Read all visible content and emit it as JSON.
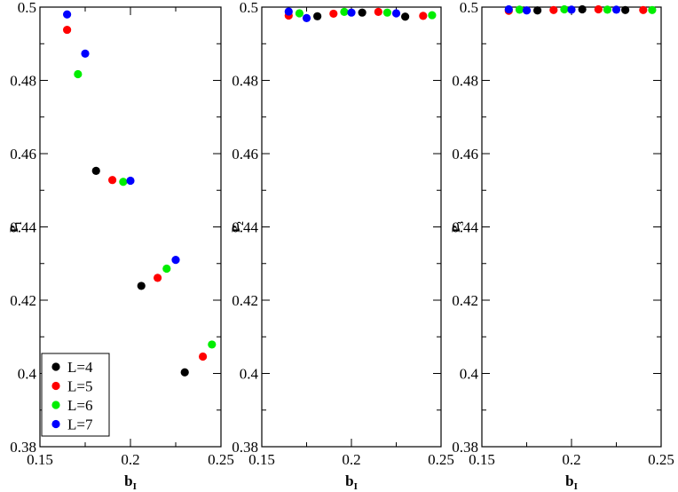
{
  "chart_data": [
    {
      "type": "scatter",
      "xlabel": "b",
      "xlabel_sub": "I",
      "ylabel": "P",
      "ylabel_sub": "1",
      "xlim": [
        0.15,
        0.25
      ],
      "ylim": [
        0.38,
        0.5
      ],
      "xticks": [
        "0.15",
        "0.2",
        "0.25"
      ],
      "yticks": [
        "0.38",
        "0.4",
        "0.42",
        "0.44",
        "0.46",
        "0.48",
        "0.5"
      ],
      "grid": false,
      "legend": "bottom-left",
      "series": [
        {
          "name": "L=4",
          "color": "#000000",
          "points": [
            [
              0.181,
              0.4553
            ],
            [
              0.206,
              0.4239
            ],
            [
              0.23,
              0.4003
            ]
          ]
        },
        {
          "name": "L=5",
          "color": "#ff0000",
          "points": [
            [
              0.165,
              0.4938
            ],
            [
              0.19,
              0.4528
            ],
            [
              0.215,
              0.4261
            ],
            [
              0.24,
              0.4046
            ]
          ]
        },
        {
          "name": "L=6",
          "color": "#00ee00",
          "points": [
            [
              0.171,
              0.4817
            ],
            [
              0.196,
              0.4523
            ],
            [
              0.22,
              0.4286
            ],
            [
              0.245,
              0.4079
            ]
          ]
        },
        {
          "name": "L=7",
          "color": "#0000ff",
          "points": [
            [
              0.165,
              0.498
            ],
            [
              0.175,
              0.4873
            ],
            [
              0.2,
              0.4526
            ],
            [
              0.225,
              0.431
            ]
          ]
        }
      ]
    },
    {
      "type": "scatter",
      "xlabel": "b",
      "xlabel_sub": "I",
      "ylabel": "P",
      "ylabel_sub": "2",
      "xlim": [
        0.15,
        0.25
      ],
      "ylim": [
        0.38,
        0.5
      ],
      "xticks": [
        "0.15",
        "0.2",
        "0.25"
      ],
      "yticks": [
        "0.38",
        "0.4",
        "0.42",
        "0.44",
        "0.46",
        "0.48",
        "0.5"
      ],
      "grid": false,
      "series": [
        {
          "name": "L=4",
          "color": "#000000",
          "points": [
            [
              0.181,
              0.4975
            ],
            [
              0.206,
              0.4985
            ],
            [
              0.23,
              0.4974
            ]
          ]
        },
        {
          "name": "L=5",
          "color": "#ff0000",
          "points": [
            [
              0.165,
              0.4977
            ],
            [
              0.19,
              0.4982
            ],
            [
              0.215,
              0.4987
            ],
            [
              0.24,
              0.4976
            ]
          ]
        },
        {
          "name": "L=6",
          "color": "#00ee00",
          "points": [
            [
              0.171,
              0.4983
            ],
            [
              0.196,
              0.4987
            ],
            [
              0.22,
              0.4985
            ],
            [
              0.245,
              0.4978
            ]
          ]
        },
        {
          "name": "L=7",
          "color": "#0000ff",
          "points": [
            [
              0.165,
              0.4988
            ],
            [
              0.175,
              0.497
            ],
            [
              0.2,
              0.4985
            ],
            [
              0.225,
              0.4983
            ]
          ]
        }
      ]
    },
    {
      "type": "scatter",
      "xlabel": "b",
      "xlabel_sub": "I",
      "ylabel": "P",
      "ylabel_sub": "3",
      "xlim": [
        0.15,
        0.25
      ],
      "ylim": [
        0.38,
        0.5
      ],
      "xticks": [
        "0.15",
        "0.2",
        "0.25"
      ],
      "yticks": [
        "0.38",
        "0.4",
        "0.42",
        "0.44",
        "0.46",
        "0.48",
        "0.5"
      ],
      "grid": false,
      "series": [
        {
          "name": "L=4",
          "color": "#000000",
          "points": [
            [
              0.181,
              0.4991
            ],
            [
              0.206,
              0.4994
            ],
            [
              0.23,
              0.4992
            ]
          ]
        },
        {
          "name": "L=5",
          "color": "#ff0000",
          "points": [
            [
              0.165,
              0.499
            ],
            [
              0.19,
              0.4992
            ],
            [
              0.215,
              0.4994
            ],
            [
              0.24,
              0.4992
            ]
          ]
        },
        {
          "name": "L=6",
          "color": "#00ee00",
          "points": [
            [
              0.171,
              0.4993
            ],
            [
              0.196,
              0.4994
            ],
            [
              0.22,
              0.4993
            ],
            [
              0.245,
              0.4992
            ]
          ]
        },
        {
          "name": "L=7",
          "color": "#0000ff",
          "points": [
            [
              0.165,
              0.4994
            ],
            [
              0.175,
              0.4991
            ],
            [
              0.2,
              0.4993
            ],
            [
              0.225,
              0.4993
            ]
          ]
        }
      ]
    }
  ]
}
